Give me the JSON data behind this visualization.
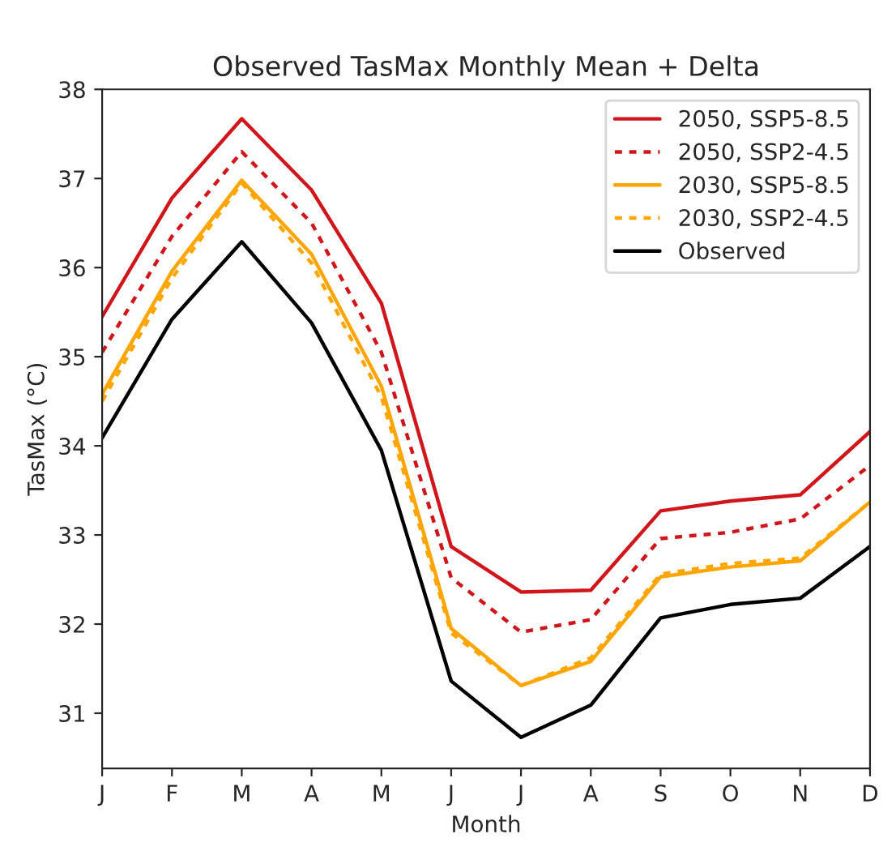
{
  "chart_data": {
    "type": "line",
    "title": "Observed TasMax Monthly Mean + Delta",
    "xlabel": "Month",
    "ylabel": "TasMax (°C)",
    "categories": [
      "J",
      "F",
      "M",
      "A",
      "M",
      "J",
      "J",
      "A",
      "S",
      "O",
      "N",
      "D"
    ],
    "series": [
      {
        "name": "2050, SSP5-8.5",
        "color": "#d0161b",
        "line_style": "solid",
        "values": [
          35.45,
          36.78,
          37.67,
          36.87,
          35.6,
          32.87,
          32.36,
          32.38,
          33.27,
          33.38,
          33.45,
          34.16
        ]
      },
      {
        "name": "2050, SSP2-4.5",
        "color": "#d0161b",
        "line_style": "dotted",
        "values": [
          35.05,
          36.35,
          37.3,
          36.5,
          35.05,
          32.52,
          31.91,
          32.05,
          32.96,
          33.03,
          33.18,
          33.78
        ]
      },
      {
        "name": "2030, SSP5-8.5",
        "color": "#ffa500",
        "line_style": "solid",
        "values": [
          34.58,
          35.96,
          36.98,
          36.15,
          34.67,
          31.95,
          31.31,
          31.58,
          32.53,
          32.64,
          32.71,
          33.37
        ]
      },
      {
        "name": "2030, SSP2-4.5",
        "color": "#ffa500",
        "line_style": "dotted",
        "values": [
          34.5,
          35.88,
          36.95,
          36.05,
          34.55,
          31.9,
          31.31,
          31.62,
          32.56,
          32.68,
          32.74,
          33.37
        ]
      },
      {
        "name": "Observed",
        "color": "#000000",
        "line_style": "solid",
        "values": [
          34.09,
          35.42,
          36.29,
          35.38,
          33.95,
          31.36,
          30.73,
          31.09,
          32.07,
          32.22,
          32.29,
          32.87
        ]
      }
    ],
    "ylim": [
      30.38,
      38
    ],
    "yticks": [
      31,
      32,
      33,
      34,
      35,
      36,
      37,
      38
    ],
    "grid": false,
    "legend": "top right",
    "marker": "none"
  }
}
